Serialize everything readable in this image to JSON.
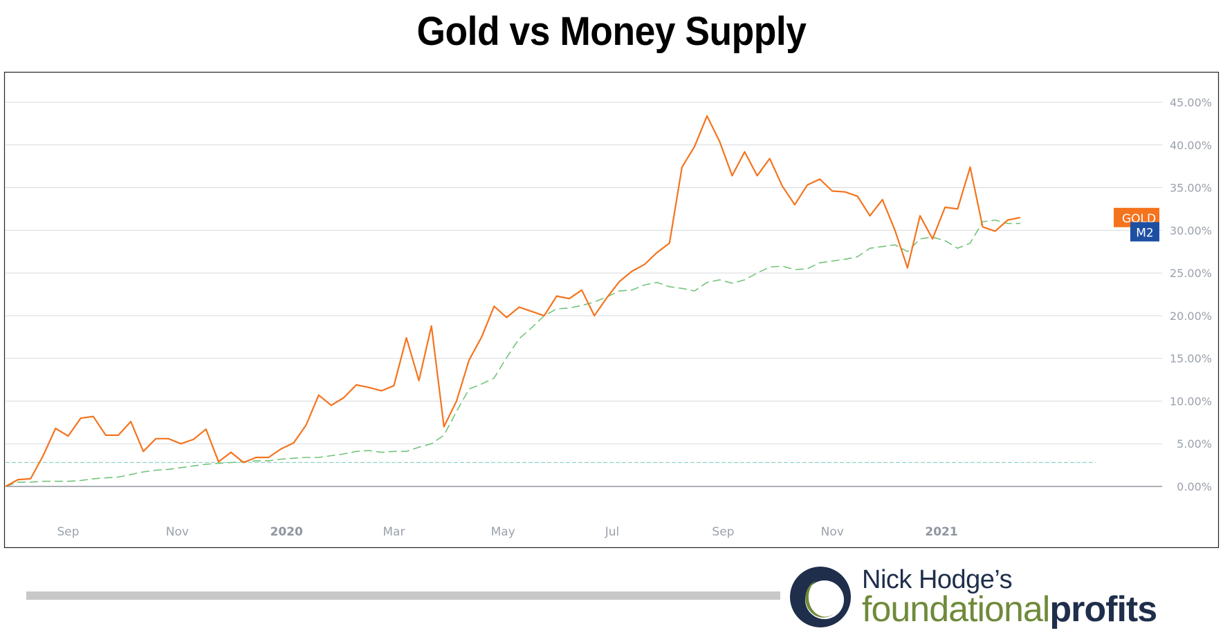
{
  "title": "Gold vs Money Supply",
  "chart_data": {
    "type": "line",
    "title": "Gold vs Money Supply",
    "xlabel": "",
    "ylabel": "",
    "y_unit": "%",
    "ylim": [
      -5,
      50
    ],
    "y_ticks": [
      "0.00%",
      "5.00%",
      "10.00%",
      "15.00%",
      "20.00%",
      "25.00%",
      "30.00%",
      "35.00%",
      "40.00%",
      "45.00%"
    ],
    "y_tick_values": [
      0,
      5,
      10,
      15,
      20,
      25,
      30,
      35,
      40,
      45
    ],
    "x_ticks": [
      {
        "label": "Sep",
        "date": "2019-09-01",
        "bold": false
      },
      {
        "label": "Nov",
        "date": "2019-11-01",
        "bold": false
      },
      {
        "label": "2020",
        "date": "2020-01-01",
        "bold": true
      },
      {
        "label": "Mar",
        "date": "2020-03-01",
        "bold": false
      },
      {
        "label": "May",
        "date": "2020-05-01",
        "bold": false
      },
      {
        "label": "Jul",
        "date": "2020-07-01",
        "bold": false
      },
      {
        "label": "Sep",
        "date": "2020-09-01",
        "bold": false
      },
      {
        "label": "Nov",
        "date": "2020-11-01",
        "bold": false
      },
      {
        "label": "2021",
        "date": "2021-01-01",
        "bold": true
      }
    ],
    "xlim": [
      "2019-07-28",
      "2021-04-06"
    ],
    "grid": true,
    "reference_line": {
      "y": 2.8,
      "color": "#8fd4c7"
    },
    "series": [
      {
        "name": "GOLD",
        "color": "#f5731d",
        "style": "solid",
        "label_value": 31.5,
        "points": [
          [
            "2019-07-28",
            0.0
          ],
          [
            "2019-08-04",
            0.8
          ],
          [
            "2019-08-11",
            0.9
          ],
          [
            "2019-08-18",
            3.6
          ],
          [
            "2019-08-25",
            6.8
          ],
          [
            "2019-09-01",
            5.9
          ],
          [
            "2019-09-08",
            8.0
          ],
          [
            "2019-09-15",
            8.2
          ],
          [
            "2019-09-22",
            6.0
          ],
          [
            "2019-09-29",
            6.0
          ],
          [
            "2019-10-06",
            7.6
          ],
          [
            "2019-10-13",
            4.1
          ],
          [
            "2019-10-20",
            5.6
          ],
          [
            "2019-10-27",
            5.6
          ],
          [
            "2019-11-03",
            5.0
          ],
          [
            "2019-11-10",
            5.5
          ],
          [
            "2019-11-17",
            6.7
          ],
          [
            "2019-11-24",
            2.9
          ],
          [
            "2019-12-01",
            4.0
          ],
          [
            "2019-12-08",
            2.8
          ],
          [
            "2019-12-15",
            3.4
          ],
          [
            "2019-12-22",
            3.4
          ],
          [
            "2019-12-29",
            4.4
          ],
          [
            "2020-01-05",
            5.1
          ],
          [
            "2020-01-12",
            7.2
          ],
          [
            "2020-01-19",
            10.7
          ],
          [
            "2020-01-26",
            9.5
          ],
          [
            "2020-02-02",
            10.4
          ],
          [
            "2020-02-09",
            11.9
          ],
          [
            "2020-02-16",
            11.6
          ],
          [
            "2020-02-23",
            11.2
          ],
          [
            "2020-03-01",
            11.8
          ],
          [
            "2020-03-08",
            17.4
          ],
          [
            "2020-03-15",
            12.4
          ],
          [
            "2020-03-22",
            18.8
          ],
          [
            "2020-03-29",
            7.0
          ],
          [
            "2020-04-05",
            10.0
          ],
          [
            "2020-04-12",
            14.8
          ],
          [
            "2020-04-19",
            17.5
          ],
          [
            "2020-04-26",
            21.1
          ],
          [
            "2020-05-03",
            19.8
          ],
          [
            "2020-05-10",
            21.0
          ],
          [
            "2020-05-17",
            20.5
          ],
          [
            "2020-05-24",
            20.0
          ],
          [
            "2020-05-31",
            22.3
          ],
          [
            "2020-06-07",
            22.0
          ],
          [
            "2020-06-14",
            23.0
          ],
          [
            "2020-06-21",
            20.0
          ],
          [
            "2020-06-28",
            22.1
          ],
          [
            "2020-07-05",
            24.0
          ],
          [
            "2020-07-12",
            25.2
          ],
          [
            "2020-07-19",
            26.0
          ],
          [
            "2020-07-26",
            27.4
          ],
          [
            "2020-08-02",
            28.5
          ],
          [
            "2020-08-09",
            37.4
          ],
          [
            "2020-08-16",
            39.8
          ],
          [
            "2020-08-23",
            43.4
          ],
          [
            "2020-08-30",
            40.4
          ],
          [
            "2020-09-06",
            36.4
          ],
          [
            "2020-09-13",
            39.2
          ],
          [
            "2020-09-20",
            36.4
          ],
          [
            "2020-09-27",
            38.4
          ],
          [
            "2020-10-04",
            35.2
          ],
          [
            "2020-10-11",
            33.0
          ],
          [
            "2020-10-18",
            35.3
          ],
          [
            "2020-10-25",
            36.0
          ],
          [
            "2020-11-01",
            34.6
          ],
          [
            "2020-11-08",
            34.5
          ],
          [
            "2020-11-15",
            34.0
          ],
          [
            "2020-11-22",
            31.7
          ],
          [
            "2020-11-29",
            33.6
          ],
          [
            "2020-12-06",
            30.0
          ],
          [
            "2020-12-13",
            25.6
          ],
          [
            "2020-12-20",
            31.7
          ],
          [
            "2020-12-27",
            29.0
          ],
          [
            "2021-01-03",
            32.7
          ],
          [
            "2021-01-10",
            32.5
          ],
          [
            "2021-01-17",
            37.4
          ],
          [
            "2021-01-24",
            30.4
          ],
          [
            "2021-01-31",
            29.9
          ],
          [
            "2021-02-07",
            31.2
          ],
          [
            "2021-02-14",
            31.5
          ]
        ]
      },
      {
        "name": "M2",
        "color": "#72c379",
        "style": "dashed",
        "label_value": 30.8,
        "points": [
          [
            "2019-07-28",
            0.0
          ],
          [
            "2019-08-04",
            0.5
          ],
          [
            "2019-08-11",
            0.5
          ],
          [
            "2019-08-18",
            0.6
          ],
          [
            "2019-08-25",
            0.6
          ],
          [
            "2019-09-01",
            0.6
          ],
          [
            "2019-09-08",
            0.7
          ],
          [
            "2019-09-15",
            0.9
          ],
          [
            "2019-09-22",
            1.0
          ],
          [
            "2019-09-29",
            1.1
          ],
          [
            "2019-10-06",
            1.4
          ],
          [
            "2019-10-13",
            1.7
          ],
          [
            "2019-10-20",
            1.9
          ],
          [
            "2019-10-27",
            2.0
          ],
          [
            "2019-11-03",
            2.2
          ],
          [
            "2019-11-10",
            2.4
          ],
          [
            "2019-11-17",
            2.6
          ],
          [
            "2019-11-24",
            2.7
          ],
          [
            "2019-12-01",
            2.8
          ],
          [
            "2019-12-08",
            2.9
          ],
          [
            "2019-12-15",
            3.0
          ],
          [
            "2019-12-22",
            3.0
          ],
          [
            "2019-12-29",
            3.2
          ],
          [
            "2020-01-05",
            3.3
          ],
          [
            "2020-01-12",
            3.4
          ],
          [
            "2020-01-19",
            3.4
          ],
          [
            "2020-01-26",
            3.6
          ],
          [
            "2020-02-02",
            3.8
          ],
          [
            "2020-02-09",
            4.1
          ],
          [
            "2020-02-16",
            4.2
          ],
          [
            "2020-02-23",
            4.0
          ],
          [
            "2020-03-01",
            4.1
          ],
          [
            "2020-03-08",
            4.1
          ],
          [
            "2020-03-15",
            4.6
          ],
          [
            "2020-03-22",
            5.0
          ],
          [
            "2020-03-29",
            6.0
          ],
          [
            "2020-04-05",
            8.8
          ],
          [
            "2020-04-12",
            11.4
          ],
          [
            "2020-04-19",
            12.0
          ],
          [
            "2020-04-26",
            12.7
          ],
          [
            "2020-05-03",
            15.1
          ],
          [
            "2020-05-10",
            17.3
          ],
          [
            "2020-05-17",
            18.6
          ],
          [
            "2020-05-24",
            20.0
          ],
          [
            "2020-05-31",
            20.8
          ],
          [
            "2020-06-07",
            20.9
          ],
          [
            "2020-06-14",
            21.2
          ],
          [
            "2020-06-21",
            21.6
          ],
          [
            "2020-06-28",
            22.2
          ],
          [
            "2020-07-05",
            22.9
          ],
          [
            "2020-07-12",
            23.0
          ],
          [
            "2020-07-19",
            23.6
          ],
          [
            "2020-07-26",
            23.9
          ],
          [
            "2020-08-02",
            23.4
          ],
          [
            "2020-08-09",
            23.2
          ],
          [
            "2020-08-16",
            22.9
          ],
          [
            "2020-08-23",
            23.9
          ],
          [
            "2020-08-30",
            24.2
          ],
          [
            "2020-09-06",
            23.8
          ],
          [
            "2020-09-13",
            24.2
          ],
          [
            "2020-09-20",
            25.0
          ],
          [
            "2020-09-27",
            25.7
          ],
          [
            "2020-10-04",
            25.8
          ],
          [
            "2020-10-11",
            25.4
          ],
          [
            "2020-10-18",
            25.5
          ],
          [
            "2020-10-25",
            26.2
          ],
          [
            "2020-11-01",
            26.4
          ],
          [
            "2020-11-08",
            26.6
          ],
          [
            "2020-11-15",
            26.9
          ],
          [
            "2020-11-22",
            27.9
          ],
          [
            "2020-11-29",
            28.1
          ],
          [
            "2020-12-06",
            28.3
          ],
          [
            "2020-12-13",
            27.5
          ],
          [
            "2020-12-20",
            29.0
          ],
          [
            "2020-12-27",
            29.2
          ],
          [
            "2021-01-03",
            28.8
          ],
          [
            "2021-01-10",
            27.9
          ],
          [
            "2021-01-17",
            28.5
          ],
          [
            "2021-01-24",
            31.0
          ],
          [
            "2021-01-31",
            31.2
          ],
          [
            "2021-02-07",
            30.8
          ],
          [
            "2021-02-14",
            30.8
          ]
        ]
      }
    ]
  },
  "brand": {
    "line1": "Nick Hodge’s",
    "line2a": "foundational",
    "line2b": "profits"
  },
  "colors": {
    "gold": "#f5731d",
    "m2": "#72c379",
    "m2_label_bg": "#1d4fa3",
    "grid": "#d6d9de",
    "zero_line": "#7b7f88",
    "brand_navy": "#1f2e4a",
    "brand_green": "#6f8a3a"
  }
}
